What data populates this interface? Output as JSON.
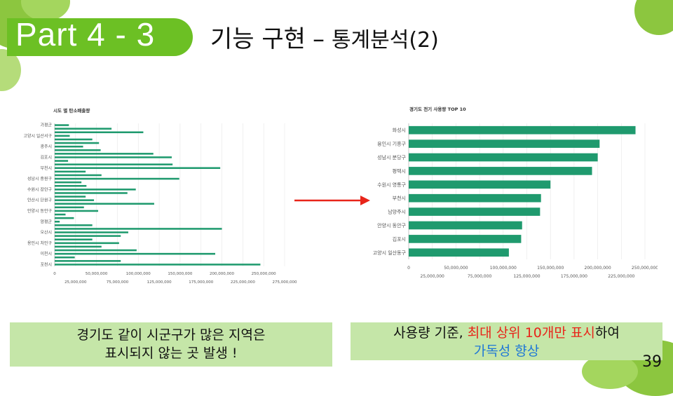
{
  "slide": {
    "part": "Part 4 - 3",
    "title_main": "기능 구현",
    "title_dash": "–",
    "title_sub": "통계분석(2)",
    "page_number": "39",
    "colors": {
      "accent_green": "#6cc024",
      "bar_green": "#1f9a6e",
      "note_box": "#c5e6a8",
      "highlight_red": "#e8251a",
      "highlight_blue": "#1f78d6"
    }
  },
  "left_note": {
    "line1": "경기도 같이 시군구가 많은 지역은",
    "line2": "표시되지 않는 곳 발생 !"
  },
  "right_note": {
    "prefix": "사용량 기준, ",
    "highlight": "최대 상위 10개만 표시",
    "suffix": "하여",
    "line2": "가독성 향상"
  },
  "arrow": {
    "color": "#e8251a",
    "icon": "right-arrow-icon"
  },
  "chart_data": [
    {
      "type": "bar",
      "orientation": "horizontal",
      "title": "시도 별 탄소배출량",
      "labeled_categories": [
        "가평군",
        "고양시 일산서구",
        "광주시",
        "김포시",
        "부천시",
        "성남시 중원구",
        "수원시 장안구",
        "안산시 단원구",
        "안양시 동안구",
        "양평군",
        "오산시",
        "용인시 처인구",
        "이천시",
        "포천시"
      ],
      "values": [
        17000000,
        68000000,
        106000000,
        18000000,
        45000000,
        53000000,
        34000000,
        55000000,
        118000000,
        140000000,
        16000000,
        141000000,
        198000000,
        37000000,
        56000000,
        149000000,
        32000000,
        38000000,
        97000000,
        87000000,
        37000000,
        47000000,
        119000000,
        35000000,
        52000000,
        13000000,
        23000000,
        6000000,
        45000000,
        200000000,
        88000000,
        79000000,
        45000000,
        77000000,
        56000000,
        98000000,
        192000000,
        24000000,
        79000000,
        246000000
      ],
      "xlim": [
        0,
        275000000
      ],
      "x_ticks_row1": [
        "0",
        "50,000,000",
        "100,000,000",
        "150,000,000",
        "200,000,000",
        "250,000,000"
      ],
      "x_ticks_row2": [
        "25,000,000",
        "75,000,000",
        "125,000,000",
        "175,000,000",
        "225,000,000",
        "275,000,000"
      ],
      "grid": true
    },
    {
      "type": "bar",
      "orientation": "horizontal",
      "title": "경기도 전기 사용량 TOP 10",
      "categories": [
        "화성시",
        "용인시 기흥구",
        "성남시 분당구",
        "평택시",
        "수원시 영통구",
        "부천시",
        "남양주시",
        "안양시 동안구",
        "김포시",
        "고양시 일산동구"
      ],
      "values": [
        240000000,
        202000000,
        200000000,
        194000000,
        150000000,
        140000000,
        139000000,
        120000000,
        119000000,
        106000000
      ],
      "xlim": [
        0,
        250000000
      ],
      "x_ticks_row1": [
        "0",
        "50,000,000",
        "100,000,000",
        "150,000,000",
        "200,000,000",
        "250,000,000"
      ],
      "x_ticks_row2": [
        "25,000,000",
        "75,000,000",
        "125,000,000",
        "175,000,000",
        "225,000,000"
      ],
      "grid": true
    }
  ]
}
